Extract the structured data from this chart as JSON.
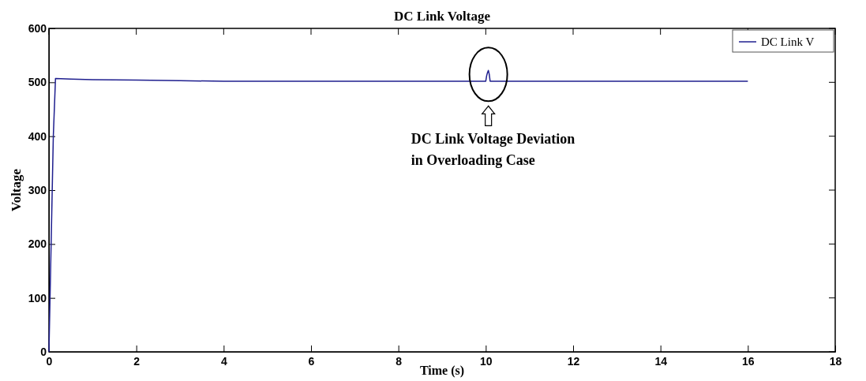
{
  "chart_data": {
    "type": "line",
    "title": "DC Link Voltage",
    "xlabel": "Time (s)",
    "ylabel": "Voltage",
    "xlim": [
      0,
      18
    ],
    "xticks": [
      0,
      2,
      4,
      6,
      8,
      10,
      12,
      14,
      16,
      18
    ],
    "ylim": [
      0,
      600
    ],
    "yticks": [
      0,
      100,
      200,
      300,
      400,
      500,
      600
    ],
    "grid": false,
    "legend": "top right",
    "annotations": [
      "DC Link Voltage Deviation\nin Overloading Case"
    ],
    "series": [
      {
        "name": "DC Link V",
        "color": "#1f1f8f",
        "x": [
          0,
          0.1,
          0.15,
          0.5,
          1,
          2,
          3,
          4,
          6,
          8,
          10,
          10.02,
          10.04,
          10.06,
          10.08,
          10.1,
          12,
          14,
          16
        ],
        "values": [
          0,
          400,
          507,
          506,
          505,
          504,
          503,
          502,
          502,
          502,
          502,
          512,
          518,
          522,
          515,
          502,
          502,
          502,
          502
        ]
      }
    ]
  }
}
